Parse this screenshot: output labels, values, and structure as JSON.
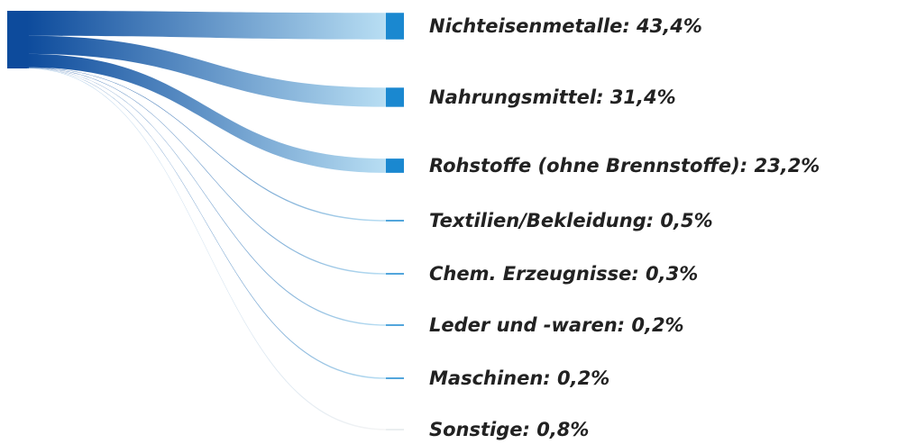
{
  "chart_data": {
    "type": "sankey",
    "values": [
      43.4,
      31.4,
      23.2,
      0.5,
      0.3,
      0.2,
      0.2,
      0.8
    ],
    "value_labels": [
      "Nichteisenmetalle: 43,4%",
      "Nahrungsmittel: 31,4%",
      "Rohstoffe (ohne Brennstoffe): 23,2%",
      "Textilien/Bekleidung: 0,5%",
      "Chem. Erzeugnisse: 0,3%",
      "Leder und -waren: 0,2%",
      "Maschinen: 0,2%",
      "Sonstige: 0,8%"
    ],
    "colors": [
      "#1a88d0",
      "#1a88d0",
      "#1a88d0",
      "#1a88d0",
      "#1a88d0",
      "#1a88d0",
      "#1a88d0",
      "#e4e8ec"
    ]
  }
}
